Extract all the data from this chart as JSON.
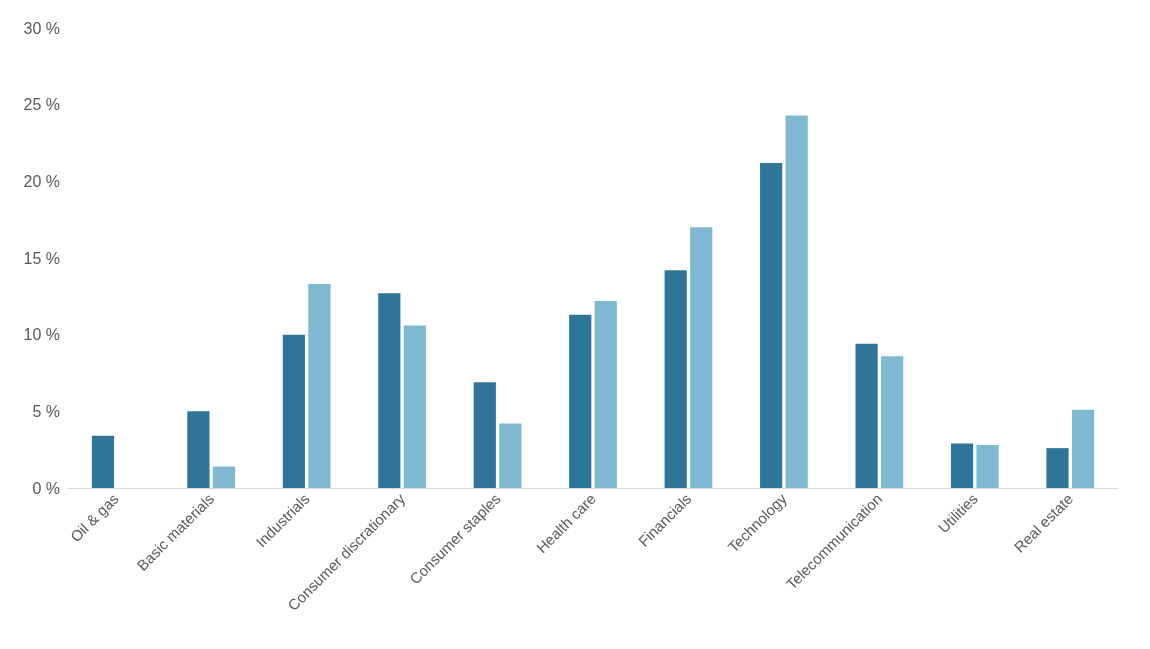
{
  "chart_data": {
    "type": "bar",
    "categories": [
      "Oil & gas",
      "Basic materials",
      "Industrials",
      "Consumer discrationary",
      "Consumer staples",
      "Health care",
      "Financials",
      "Technology",
      "Telecommunication",
      "Utilities",
      "Real estate"
    ],
    "series": [
      {
        "color": "#2e7597",
        "values": [
          3.4,
          5.0,
          10.0,
          12.7,
          6.9,
          11.3,
          14.2,
          21.2,
          9.4,
          2.9,
          2.6
        ]
      },
      {
        "color": "#7fb8d1",
        "values": [
          0,
          1.4,
          13.3,
          10.6,
          4.2,
          12.2,
          17.0,
          24.3,
          8.6,
          2.8,
          5.1
        ]
      }
    ],
    "ylim": [
      0,
      30
    ],
    "yticks": [
      {
        "value": 0,
        "label": "0 %"
      },
      {
        "value": 5,
        "label": "5 %"
      },
      {
        "value": 10,
        "label": "10 %"
      },
      {
        "value": 15,
        "label": "15 %"
      },
      {
        "value": 20,
        "label": "20 %"
      },
      {
        "value": 25,
        "label": "25 %"
      },
      {
        "value": 30,
        "label": "30 %"
      }
    ],
    "grid": false
  }
}
